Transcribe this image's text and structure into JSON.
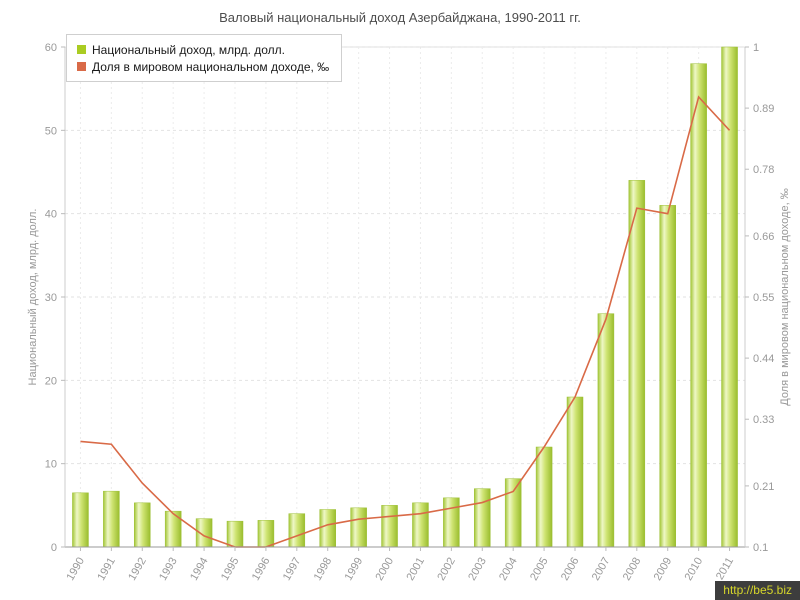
{
  "title": "Валовый национальный доход Азербайджана, 1990-2011 гг.",
  "watermark": "http://be5.biz",
  "chart_data": {
    "type": "bar",
    "combo": "bar+line",
    "title": "Валовый национальный доход Азербайджана, 1990-2011 гг.",
    "categories": [
      "1990",
      "1991",
      "1992",
      "1993",
      "1994",
      "1995",
      "1996",
      "1997",
      "1998",
      "1999",
      "2000",
      "2001",
      "2002",
      "2003",
      "2004",
      "2005",
      "2006",
      "2007",
      "2008",
      "2009",
      "2010",
      "2011"
    ],
    "series": [
      {
        "name": "Национальный доход, млрд. долл.",
        "type": "bar",
        "axis": "left",
        "color": "#aacc22",
        "values": [
          6.5,
          6.7,
          5.3,
          4.3,
          3.4,
          3.1,
          3.2,
          4.0,
          4.5,
          4.7,
          5.0,
          5.3,
          5.9,
          7.0,
          8.2,
          12.0,
          18.0,
          28.0,
          44.0,
          41.0,
          58.0,
          60.0
        ]
      },
      {
        "name": "Доля в мировом национальном доходе, ‰",
        "type": "line",
        "axis": "right",
        "color": "#d96a47",
        "values": [
          0.29,
          0.285,
          0.215,
          0.16,
          0.12,
          0.1,
          0.1,
          0.12,
          0.14,
          0.15,
          0.155,
          0.16,
          0.17,
          0.18,
          0.2,
          0.28,
          0.37,
          0.51,
          0.71,
          0.7,
          0.91,
          0.85
        ]
      }
    ],
    "left_axis": {
      "label": "Национальный доход, млрд. долл.",
      "min": 0,
      "max": 60,
      "ticks": [
        0,
        10,
        20,
        30,
        40,
        50,
        60
      ]
    },
    "right_axis": {
      "label": "Доля в мировом национальном доходе, ‰",
      "min": 0.1,
      "max": 1,
      "ticks": [
        0.1,
        0.21,
        0.33,
        0.44,
        0.55,
        0.66,
        0.78,
        0.89,
        1
      ]
    },
    "legend_position": "top-left",
    "grid": true
  }
}
